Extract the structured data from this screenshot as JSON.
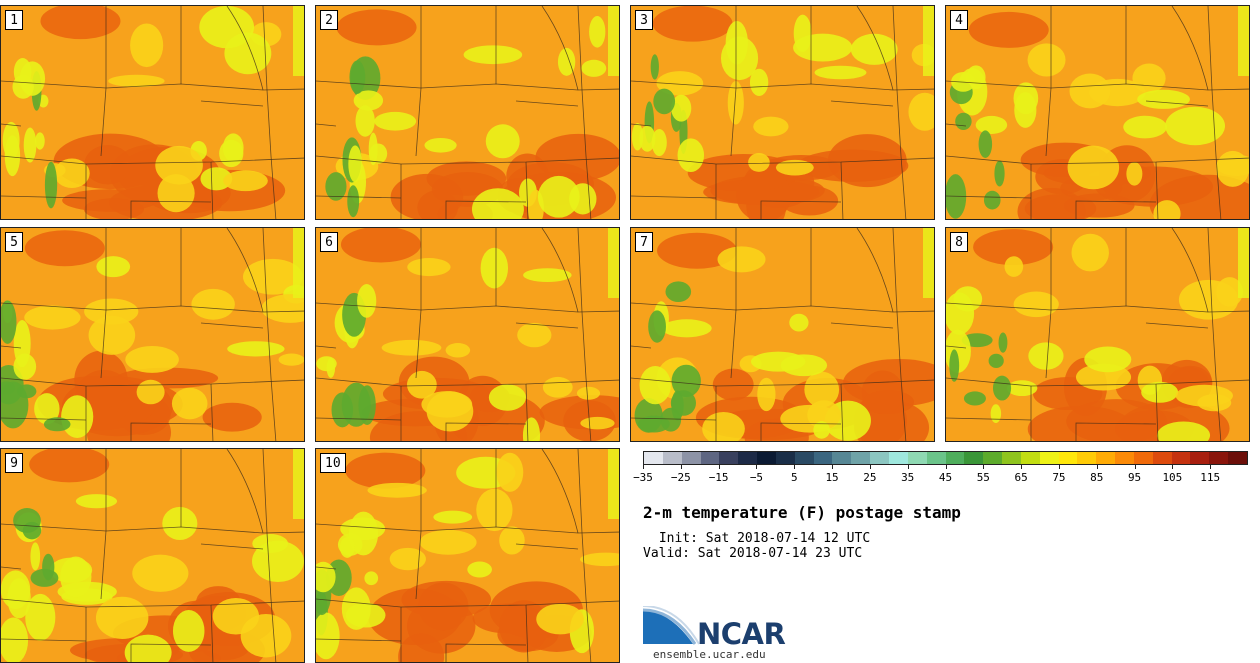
{
  "title": "2-m temperature (F) postage stamp",
  "init": " Init: Sat 2018-07-14 12 UTC",
  "valid": "Valid: Sat 2018-07-14 23 UTC",
  "brand": {
    "name": "NCAR",
    "site": "ensemble.ucar.edu",
    "color": "#1c3f6e"
  },
  "members": [
    "1",
    "2",
    "3",
    "4",
    "5",
    "6",
    "7",
    "8",
    "9",
    "10"
  ],
  "colorbar": {
    "tick_labels": [
      "−35",
      "−25",
      "−15",
      "−5",
      "5",
      "15",
      "25",
      "35",
      "45",
      "55",
      "65",
      "75",
      "85",
      "95",
      "105",
      "115"
    ],
    "colors": [
      "#e4e7ee",
      "#b9bdc9",
      "#8d93a6",
      "#5e6682",
      "#39405e",
      "#1d2a47",
      "#0b1a33",
      "#1a2e48",
      "#2a4a64",
      "#3b6680",
      "#578795",
      "#6fa3a8",
      "#8cc6c1",
      "#9fe8de",
      "#8fd9b3",
      "#6bc48a",
      "#4fae5c",
      "#3a9638",
      "#5dab2c",
      "#8fc41e",
      "#c2dd12",
      "#eef217",
      "#ffe70b",
      "#ffcb07",
      "#ffab06",
      "#fb8a08",
      "#f06a0a",
      "#dd4b0d",
      "#c5320f",
      "#a81f0f",
      "#8a150c",
      "#6c0f0a"
    ]
  },
  "colors": {
    "hot": "#e8600e",
    "warm": "#f7a21c",
    "mild": "#f9d31a",
    "cool": "#e9f21a",
    "green": "#5daa2f"
  }
}
